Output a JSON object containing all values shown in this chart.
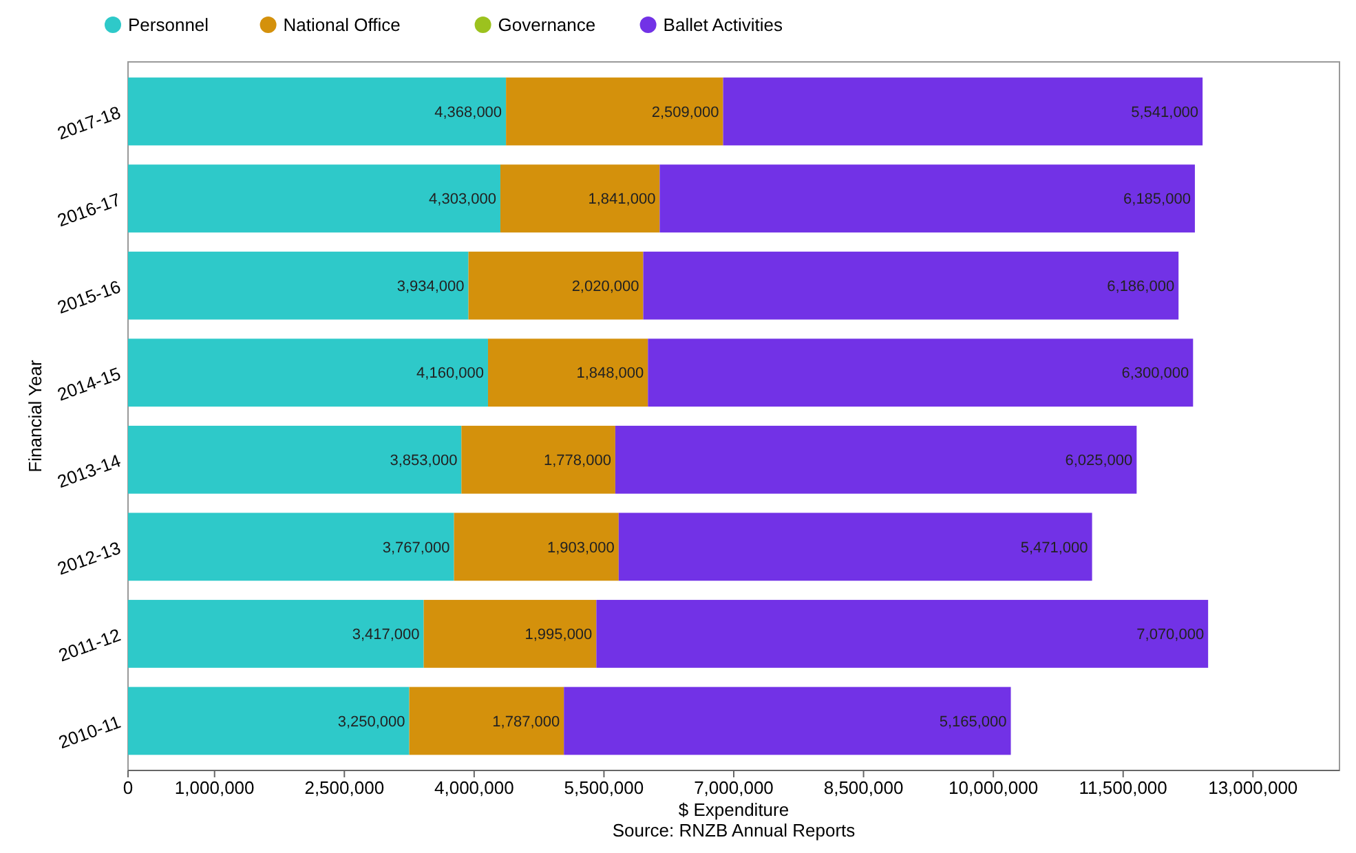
{
  "chart_data": {
    "type": "bar",
    "orientation": "horizontal",
    "stacked": true,
    "xlabel": "$ Expenditure",
    "ylabel": "Financial Year",
    "annotations": [
      "Source: RNZB Annual Reports"
    ],
    "categories": [
      "2017-18",
      "2016-17",
      "2015-16",
      "2014-15",
      "2013-14",
      "2012-13",
      "2011-12",
      "2010-11"
    ],
    "series": [
      {
        "name": "Personnel",
        "color": "#2ec9c9",
        "values": [
          4368000,
          4303000,
          3934000,
          4160000,
          3853000,
          3767000,
          3417000,
          3250000
        ],
        "value_labels": [
          "4,368,000",
          "4,303,000",
          "3,934,000",
          "4,160,000",
          "3,853,000",
          "3,767,000",
          "3,417,000",
          "3,250,000"
        ]
      },
      {
        "name": "National Office",
        "color": "#d4910c",
        "values": [
          2509000,
          1841000,
          2020000,
          1848000,
          1778000,
          1903000,
          1995000,
          1787000
        ],
        "value_labels": [
          "2,509,000",
          "1,841,000",
          "2,020,000",
          "1,848,000",
          "1,778,000",
          "1,903,000",
          "1,995,000",
          "1,787,000"
        ]
      },
      {
        "name": "Governance",
        "color": "#9cc21e",
        "values": [
          null,
          null,
          null,
          null,
          null,
          null,
          null,
          null
        ]
      },
      {
        "name": "Ballet Activities",
        "color": "#7232e6",
        "values": [
          5541000,
          6185000,
          6186000,
          6300000,
          6025000,
          5471000,
          7070000,
          5165000
        ],
        "value_labels": [
          "5,541,000",
          "6,185,000",
          "6,186,000",
          "6,300,000",
          "6,025,000",
          "5,471,000",
          "7,070,000",
          "5,165,000"
        ]
      }
    ],
    "xlim": [
      0,
      14000000
    ],
    "xticks": [
      0,
      {
        "value": 1000000,
        "label": "1,000,000"
      },
      {
        "value": 2500000,
        "label": "2,500,000"
      },
      {
        "value": 4000000,
        "label": "4,000,000"
      },
      {
        "value": 5500000,
        "label": "5,500,000"
      },
      {
        "value": 7000000,
        "label": "7,000,000"
      },
      {
        "value": 8500000,
        "label": "8,500,000"
      },
      {
        "value": 10000000,
        "label": "10,000,000"
      },
      {
        "value": 11500000,
        "label": "11,500,000"
      },
      {
        "value": 13000000,
        "label": "13,000,000"
      }
    ],
    "grid": false,
    "legend": "top left"
  }
}
